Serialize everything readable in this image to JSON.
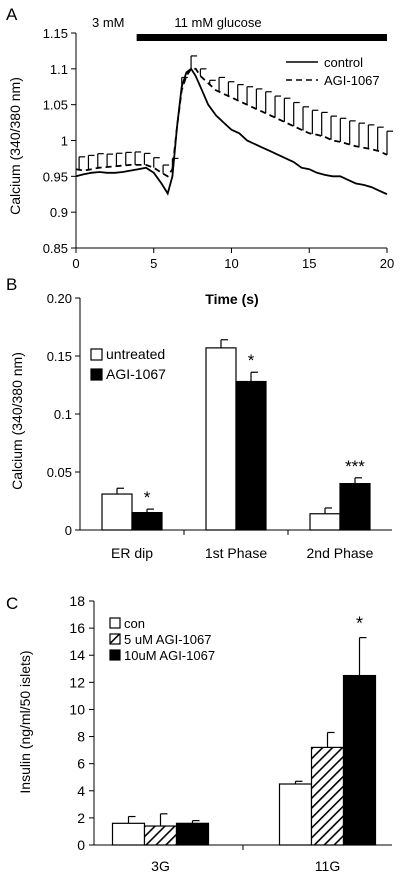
{
  "chart_data": [
    {
      "panel_label": "A",
      "type": "line",
      "xlabel": "Time (s)",
      "ylabel": "Calcium (340/380 nm)",
      "xlim": [
        0,
        20
      ],
      "ylim": [
        0.85,
        1.15
      ],
      "xticks": [
        0,
        5,
        10,
        15,
        20
      ],
      "yticks": [
        0.85,
        0.9,
        0.95,
        1,
        1.05,
        1.1,
        1.15
      ],
      "ytick_labels": [
        "0.85",
        "0.9",
        "0.95",
        "1",
        "1.05",
        "1.1",
        "1.15"
      ],
      "annotations": [
        {
          "text": "3 mM"
        },
        {
          "text": "11 mM glucose",
          "bar_x": [
            3.9,
            20
          ]
        }
      ],
      "legend_position": "top-right",
      "series": [
        {
          "name": "control",
          "style": "solid",
          "x": [
            0,
            0.5,
            1,
            1.5,
            2,
            2.5,
            3,
            3.5,
            4,
            4.5,
            5,
            5.5,
            5.9,
            6.2,
            6.5,
            6.8,
            7.1,
            7.4,
            7.7,
            8,
            8.5,
            9,
            9.5,
            10,
            10.5,
            11,
            11.5,
            12,
            12.5,
            13,
            13.5,
            14,
            14.5,
            15,
            15.5,
            16,
            16.5,
            17,
            17.5,
            18,
            18.5,
            19,
            19.5,
            20
          ],
          "y": [
            0.95,
            0.953,
            0.955,
            0.956,
            0.955,
            0.955,
            0.956,
            0.958,
            0.96,
            0.962,
            0.955,
            0.94,
            0.926,
            0.95,
            1.02,
            1.075,
            1.095,
            1.1,
            1.09,
            1.075,
            1.05,
            1.035,
            1.025,
            1.015,
            1.01,
            1.0,
            0.995,
            0.99,
            0.985,
            0.98,
            0.975,
            0.97,
            0.962,
            0.96,
            0.955,
            0.952,
            0.95,
            0.95,
            0.945,
            0.94,
            0.938,
            0.935,
            0.93,
            0.925
          ]
        },
        {
          "name": "AGI-1067",
          "style": "dashed",
          "x": [
            0,
            0.5,
            1,
            1.5,
            2,
            2.5,
            3,
            3.5,
            4,
            4.5,
            5,
            5.5,
            5.9,
            6.2,
            6.5,
            6.8,
            7.1,
            7.4,
            7.7,
            8,
            8.5,
            9,
            9.5,
            10,
            10.5,
            11,
            11.5,
            12,
            12.5,
            13,
            13.5,
            14,
            14.5,
            15,
            15.5,
            16,
            16.5,
            17,
            17.5,
            18,
            18.5,
            19,
            19.5,
            20
          ],
          "y": [
            0.96,
            0.958,
            0.96,
            0.962,
            0.963,
            0.964,
            0.965,
            0.966,
            0.966,
            0.966,
            0.962,
            0.955,
            0.95,
            0.96,
            1.02,
            1.07,
            1.09,
            1.1,
            1.1,
            1.09,
            1.08,
            1.07,
            1.065,
            1.06,
            1.055,
            1.05,
            1.045,
            1.04,
            1.035,
            1.03,
            1.025,
            1.02,
            1.015,
            1.01,
            1.008,
            1.005,
            1.0,
            0.998,
            0.995,
            0.992,
            0.99,
            0.988,
            0.985,
            0.98
          ],
          "error_x": [
            0.2,
            0.8,
            1.4,
            2.0,
            2.6,
            3.2,
            3.8,
            4.4,
            5.0,
            5.6,
            6.2,
            6.8,
            7.4,
            8.0,
            8.6,
            9.2,
            9.8,
            10.4,
            11.0,
            11.6,
            12.2,
            12.8,
            13.4,
            14.0,
            14.6,
            15.2,
            15.8,
            16.4,
            17.0,
            17.6,
            18.2,
            18.8,
            19.4,
            20.0
          ],
          "error_plus": [
            0.018,
            0.02,
            0.02,
            0.018,
            0.018,
            0.018,
            0.018,
            0.016,
            0.014,
            0.012,
            0.015,
            0.018,
            0.018,
            0.01,
            0.006,
            0.02,
            0.02,
            0.022,
            0.025,
            0.028,
            0.03,
            0.03,
            0.033,
            0.033,
            0.033,
            0.033,
            0.033,
            0.033,
            0.033,
            0.033,
            0.033,
            0.033,
            0.033,
            0.033
          ]
        }
      ]
    },
    {
      "panel_label": "B",
      "type": "bar",
      "xlabel": "",
      "ylabel": "Calcium (340/380 nm)",
      "ylim": [
        0,
        0.2
      ],
      "yticks": [
        0,
        0.05,
        0.1,
        0.15,
        0.2
      ],
      "ytick_labels": [
        "0",
        "0.05",
        "0.1",
        "0.15",
        "0.20"
      ],
      "categories": [
        "ER dip",
        "1st Phase",
        "2nd Phase"
      ],
      "legend_position": "top-left",
      "series": [
        {
          "name": "untreated",
          "fill": "#ffffff",
          "values": [
            0.031,
            0.157,
            0.014
          ],
          "errors": [
            0.005,
            0.007,
            0.005
          ]
        },
        {
          "name": "AGI-1067",
          "fill": "#000000",
          "values": [
            0.015,
            0.128,
            0.04
          ],
          "errors": [
            0.003,
            0.008,
            0.005
          ]
        }
      ],
      "significance": [
        {
          "category_index": 0,
          "text": "*"
        },
        {
          "category_index": 1,
          "text": "*"
        },
        {
          "category_index": 2,
          "text": "***"
        }
      ]
    },
    {
      "panel_label": "C",
      "type": "bar",
      "xlabel": "",
      "ylabel": "Insulin (ng/ml/50 islets)",
      "ylim": [
        0,
        18
      ],
      "yticks": [
        0,
        2,
        4,
        6,
        8,
        10,
        12,
        14,
        16,
        18
      ],
      "ytick_labels": [
        "0",
        "2",
        "4",
        "6",
        "8",
        "10",
        "12",
        "14",
        "16",
        "18"
      ],
      "categories": [
        "3G",
        "11G"
      ],
      "legend_position": "top-left",
      "series": [
        {
          "name": "con",
          "fill": "#ffffff",
          "values": [
            1.6,
            4.5
          ],
          "errors": [
            0.5,
            0.2
          ]
        },
        {
          "name": "5 uM AGI-1067",
          "fill": "hatched",
          "values": [
            1.4,
            7.2
          ],
          "errors": [
            0.9,
            1.1
          ]
        },
        {
          "name": "10uM  AGI-1067",
          "fill": "#000000",
          "values": [
            1.6,
            12.5
          ],
          "errors": [
            0.2,
            2.8
          ]
        }
      ],
      "significance": [
        {
          "category_index": 1,
          "series_index": 2,
          "text": "*"
        }
      ]
    }
  ]
}
